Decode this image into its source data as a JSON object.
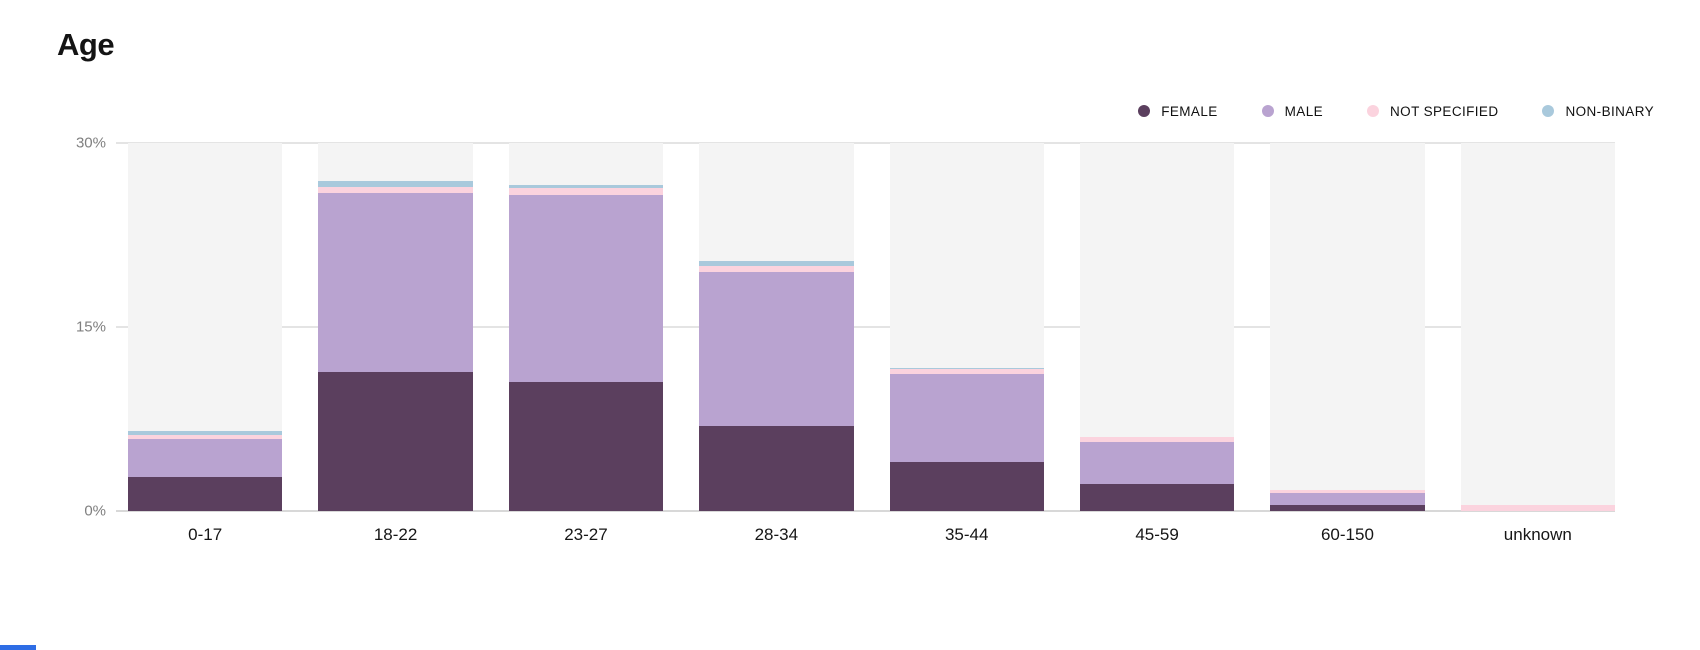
{
  "page": {
    "title": "Age"
  },
  "colors": {
    "female": "#5b3f5e",
    "male": "#b9a3d0",
    "not_specified": "#fbd3de",
    "non_binary": "#a9c9dc",
    "track_bg": "#f4f4f4",
    "gridline": "#e4e4e4",
    "baseline": "#d8d8d8",
    "axis_label": "#7f7f7f",
    "x_label": "#161616",
    "bottom_accent": "#2e6de5"
  },
  "legend": {
    "items": [
      {
        "label": "FEMALE",
        "color": "#5b3f5e"
      },
      {
        "label": "MALE",
        "color": "#b9a3d0"
      },
      {
        "label": "NOT SPECIFIED",
        "color": "#fbd3de"
      },
      {
        "label": "NON-BINARY",
        "color": "#a9c9dc"
      }
    ]
  },
  "chart_data": {
    "type": "bar",
    "stacked": true,
    "title": "Age",
    "unit": "%",
    "categories": [
      "0-17",
      "18-22",
      "23-27",
      "28-34",
      "35-44",
      "45-59",
      "60-150",
      "unknown"
    ],
    "series": [
      {
        "name": "FEMALE",
        "color": "#5b3f5e",
        "values": [
          2.8,
          11.3,
          10.5,
          6.9,
          4.0,
          2.2,
          0.5,
          0
        ]
      },
      {
        "name": "MALE",
        "color": "#b9a3d0",
        "values": [
          3.1,
          14.6,
          15.3,
          12.6,
          7.2,
          3.4,
          1.0,
          0
        ]
      },
      {
        "name": "NOT SPECIFIED",
        "color": "#fbd3de",
        "values": [
          0.3,
          0.5,
          0.5,
          0.5,
          0.4,
          0.4,
          0.2,
          0.5
        ]
      },
      {
        "name": "NON-BINARY",
        "color": "#a9c9dc",
        "values": [
          0.3,
          0.5,
          0.3,
          0.4,
          0.1,
          0,
          0,
          0
        ]
      }
    ],
    "ylim": [
      0,
      30
    ],
    "y_ticks": [
      {
        "label": "0%",
        "value": 0
      },
      {
        "label": "15%",
        "value": 15
      },
      {
        "label": "30%",
        "value": 30
      }
    ],
    "grid": true,
    "legend_position": "top-right",
    "xlabel": "",
    "ylabel": ""
  }
}
